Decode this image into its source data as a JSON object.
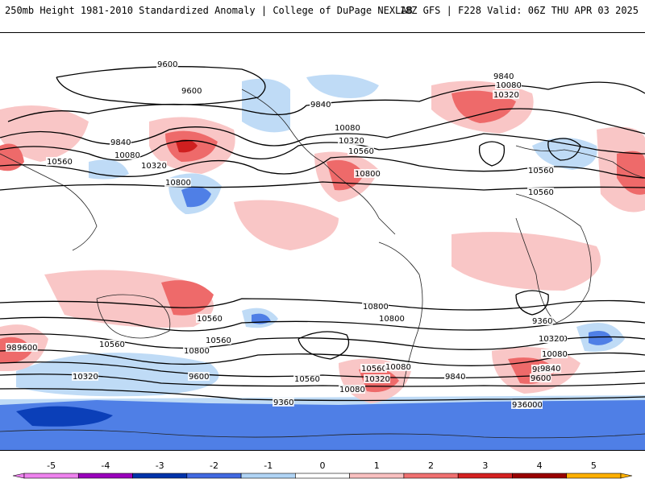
{
  "header": {
    "left_title": "250mb Height 1981-2010 Standardized Anomaly | College of DuPage NEXLAB",
    "right_title": "18Z GFS | F228 Valid: 06Z THU APR 03 2025"
  },
  "contour_labels": [
    "9600",
    "9600",
    "9840",
    "10080",
    "10320",
    "10560",
    "9840",
    "10080",
    "10320",
    "10560",
    "10800",
    "9840",
    "10080",
    "10320",
    "10560",
    "10800",
    "10560",
    "10800",
    "10800",
    "10560",
    "10800",
    "10560",
    "10320",
    "9840",
    "9600",
    "9360",
    "9840",
    "10080",
    "10320",
    "10560",
    "10560",
    "10080",
    "10320",
    "10080",
    "9840",
    "9600",
    "9360",
    "10800",
    "10560",
    "10320",
    "10080",
    "9840",
    "9600",
    "9360"
  ],
  "colorbar": {
    "ticks": [
      "-5",
      "-4",
      "-3",
      "-2",
      "-1",
      "0",
      "1",
      "2",
      "3",
      "4",
      "5"
    ],
    "colors": [
      "#ee82ee",
      "#9900bb",
      "#0033aa",
      "#4169e1",
      "#b0d4f5",
      "#ffffff",
      "#f9c0c0",
      "#f07070",
      "#d42020",
      "#990000",
      "#ffb000"
    ]
  },
  "colors": {
    "neg_light": "#bfdbf6",
    "neg_mid": "#4f7fe6",
    "neg_dark": "#0b3fb8",
    "pos_light": "#f9c6c6",
    "pos_mid": "#ee6a6a",
    "pos_dark": "#cf1f1f",
    "contour": "#000000",
    "coast": "#222222"
  }
}
